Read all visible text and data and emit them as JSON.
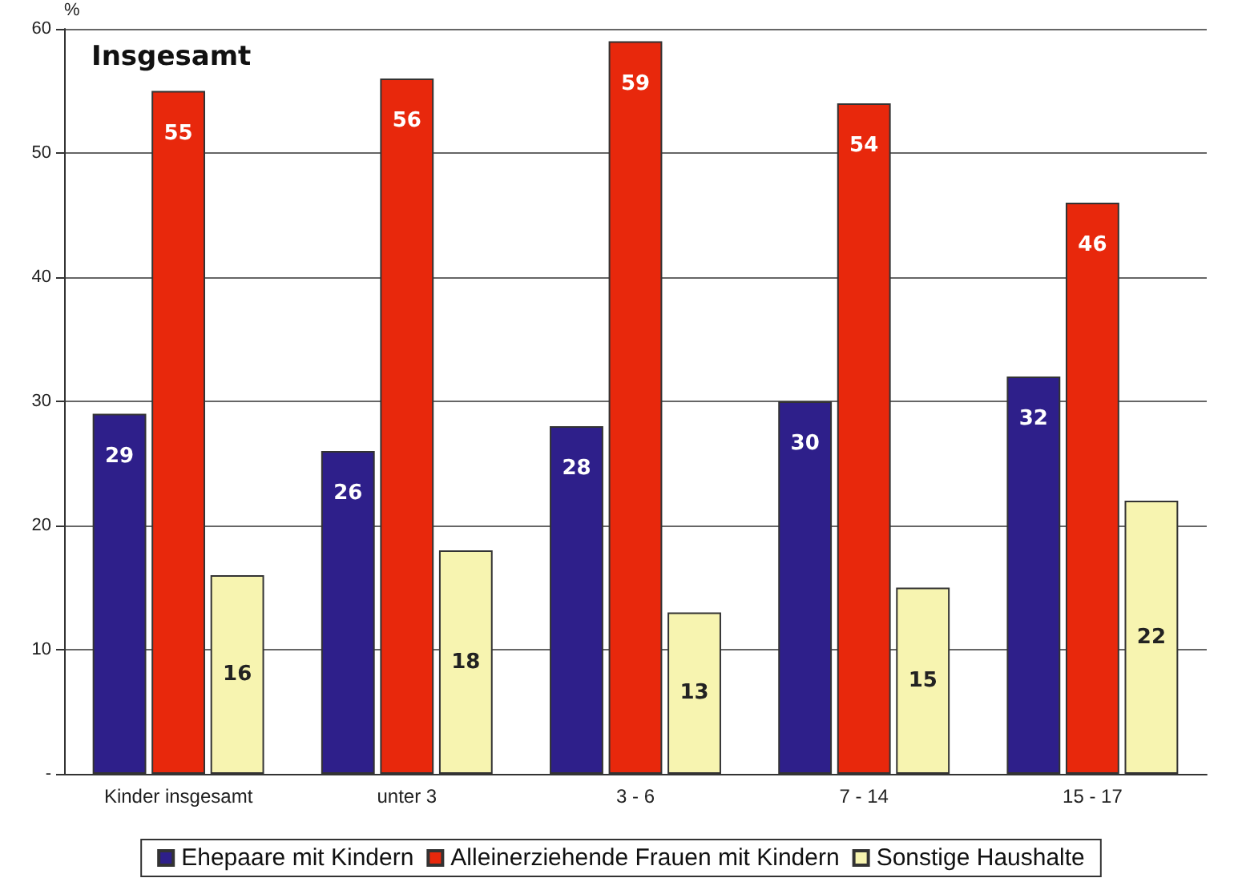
{
  "chart_data": {
    "type": "bar",
    "title": "Insgesamt",
    "ylabel": "%",
    "categories": [
      "Kinder insgesamt",
      "unter 3",
      "3 - 6",
      "7 - 14",
      "15 - 17"
    ],
    "series": [
      {
        "name": "Ehepaare mit Kindern",
        "color": "#2e1f8a",
        "values": [
          29,
          26,
          28,
          30,
          32
        ]
      },
      {
        "name": "Alleinerziehende Frauen mit Kindern",
        "color": "#e8280c",
        "values": [
          55,
          56,
          59,
          54,
          46
        ]
      },
      {
        "name": "Sonstige Haushalte",
        "color": "#f7f4b0",
        "values": [
          16,
          18,
          13,
          15,
          22
        ]
      }
    ],
    "ylim": [
      0,
      60
    ],
    "yticks": [
      {
        "value": 0,
        "label": "-"
      },
      10,
      20,
      30,
      40,
      50,
      60
    ],
    "grid": "y",
    "legend": "bottom",
    "data_labels": true
  }
}
